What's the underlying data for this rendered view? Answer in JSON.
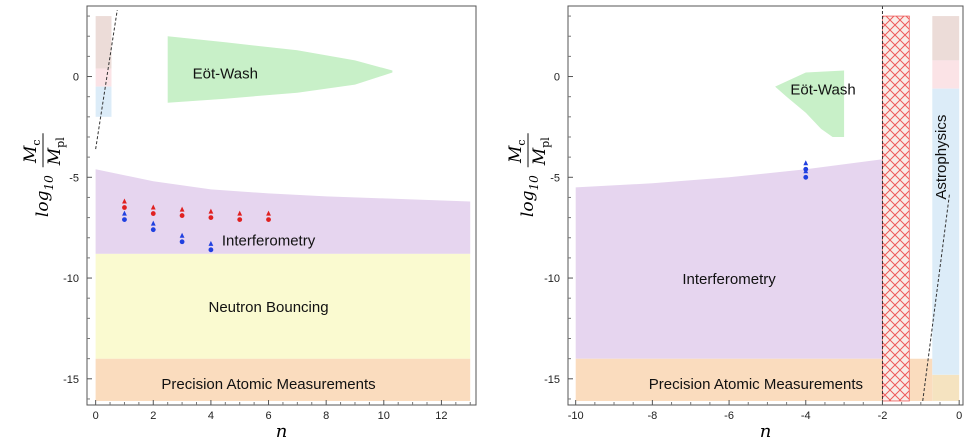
{
  "chart_data": [
    {
      "type": "scatter",
      "xlabel": "n",
      "ylabel": {
        "main": "log",
        "sub": "10",
        "num": "M",
        "num_sub": "c",
        "den": "M",
        "den_sub": "pl"
      },
      "xlim": [
        -0.3,
        13.2
      ],
      "ylim": [
        -16.3,
        3.5
      ],
      "xticks": [
        0,
        2,
        4,
        6,
        8,
        10,
        12
      ],
      "yticks": [
        0,
        -5,
        -10,
        -15
      ],
      "regions": [
        {
          "name": "Eöt-Wash",
          "color": "#c8f0c8",
          "polygon": [
            [
              2.5,
              2.0
            ],
            [
              4.5,
              1.7
            ],
            [
              7.0,
              1.3
            ],
            [
              9.0,
              0.8
            ],
            [
              10.3,
              0.3
            ],
            [
              10.3,
              0.2
            ],
            [
              9.0,
              -0.4
            ],
            [
              7.0,
              -0.8
            ],
            [
              4.5,
              -1.1
            ],
            [
              2.5,
              -1.3
            ]
          ]
        },
        {
          "name": "Interferometry",
          "color": "#e6d5ef",
          "polygon": [
            [
              0,
              -4.6
            ],
            [
              2,
              -5.2
            ],
            [
              4,
              -5.6
            ],
            [
              6,
              -5.8
            ],
            [
              8,
              -5.95
            ],
            [
              10,
              -6.05
            ],
            [
              13,
              -6.2
            ],
            [
              13,
              -8.8
            ],
            [
              0,
              -8.8
            ]
          ]
        },
        {
          "name": "Neutron Bouncing",
          "color": "#fafad0",
          "polygon": [
            [
              0,
              -8.8
            ],
            [
              13,
              -8.8
            ],
            [
              13,
              -14.0
            ],
            [
              0,
              -14.0
            ]
          ]
        },
        {
          "name": "Precision Atomic Measurements",
          "color": "#fadcbe",
          "polygon": [
            [
              0,
              -14.0
            ],
            [
              13,
              -14.0
            ],
            [
              13,
              -16.1
            ],
            [
              0,
              -16.1
            ]
          ]
        }
      ],
      "strips": [
        {
          "color": "#ecdcd8",
          "y": [
            0.4,
            3.0
          ]
        },
        {
          "color": "#fbe3e6",
          "y": [
            -0.5,
            0.4
          ]
        },
        {
          "color": "#dcecf8",
          "y": [
            -2.0,
            -0.5
          ]
        }
      ],
      "boundary_line": [
        [
          0,
          -3.6
        ],
        [
          0.75,
          3.3
        ]
      ],
      "series": [
        {
          "color": "#e02020",
          "points": [
            [
              1,
              -6.5
            ],
            [
              2,
              -6.8
            ],
            [
              3,
              -6.9
            ],
            [
              4,
              -7.0
            ],
            [
              5,
              -7.1
            ],
            [
              6,
              -7.1
            ]
          ]
        },
        {
          "color": "#2040e0",
          "points": [
            [
              1,
              -7.1
            ],
            [
              2,
              -7.6
            ],
            [
              3,
              -8.2
            ],
            [
              4,
              -8.6
            ]
          ]
        }
      ],
      "labels": [
        {
          "text": "Eöt-Wash",
          "x": 4.5,
          "y": 0.1
        },
        {
          "text": "Interferometry",
          "x": 6.0,
          "y": -8.2
        },
        {
          "text": "Neutron Bouncing",
          "x": 6.0,
          "y": -11.5
        },
        {
          "text": "Precision Atomic Measurements",
          "x": 6.0,
          "y": -15.3
        }
      ]
    },
    {
      "type": "scatter",
      "xlabel": "n",
      "ylabel": {
        "main": "log",
        "sub": "10",
        "num": "M",
        "num_sub": "c",
        "den": "M",
        "den_sub": "pl"
      },
      "xlim": [
        -10.2,
        0.1
      ],
      "ylim": [
        -16.3,
        3.5
      ],
      "xticks": [
        -10,
        -8,
        -6,
        -4,
        -2,
        0
      ],
      "yticks": [
        0,
        -5,
        -10,
        -15
      ],
      "regions": [
        {
          "name": "Eöt-Wash",
          "color": "#c8f0c8",
          "polygon": [
            [
              -4.0,
              0.2
            ],
            [
              -3.0,
              0.3
            ],
            [
              -3.0,
              -3.0
            ],
            [
              -3.3,
              -3.0
            ],
            [
              -3.6,
              -2.6
            ],
            [
              -4.0,
              -1.8
            ],
            [
              -4.5,
              -1.0
            ],
            [
              -4.8,
              -0.5
            ]
          ]
        },
        {
          "name": "Interferometry",
          "color": "#e6d5ef",
          "polygon": [
            [
              -10,
              -5.5
            ],
            [
              -8,
              -5.3
            ],
            [
              -6,
              -5.0
            ],
            [
              -4,
              -4.6
            ],
            [
              -2,
              -4.1
            ],
            [
              -2,
              -14.0
            ],
            [
              -10,
              -14.0
            ]
          ]
        },
        {
          "name": "Precision Atomic Measurements",
          "color": "#fadcbe",
          "polygon": [
            [
              -10,
              -14.0
            ],
            [
              -0.7,
              -14.0
            ],
            [
              -0.7,
              -16.1
            ],
            [
              -10,
              -16.1
            ]
          ]
        },
        {
          "name": "Astrophysics",
          "color": "#dcecf8",
          "polygon": [
            [
              -0.7,
              -0.6
            ],
            [
              0,
              -0.6
            ],
            [
              0,
              -14.8
            ],
            [
              -0.7,
              -14.8
            ]
          ]
        },
        {
          "name": "hatched-band",
          "color": "#f8ece8",
          "polygon": [
            [
              -2,
              3.0
            ],
            [
              -1.3,
              3.0
            ],
            [
              -1.3,
              -16.1
            ],
            [
              -2,
              -16.1
            ]
          ]
        }
      ],
      "strips": [
        {
          "color": "#ecdcd8",
          "x": [
            -0.7,
            0
          ],
          "y": [
            0.8,
            3.0
          ]
        },
        {
          "color": "#fbe3e6",
          "x": [
            -0.7,
            0
          ],
          "y": [
            -0.6,
            0.8
          ]
        },
        {
          "color": "#f5e3c0",
          "x": [
            -0.7,
            0
          ],
          "y": [
            -16.1,
            -14.8
          ]
        }
      ],
      "hatch": {
        "x": [
          -2,
          -1.3
        ],
        "y": [
          -16.1,
          3.0
        ],
        "color": "#ee5a5a"
      },
      "vline": -2,
      "boundary_line": [
        [
          -0.95,
          -16.1
        ],
        [
          -0.25,
          -5.8
        ]
      ],
      "series": [
        {
          "color": "#2040e0",
          "points": [
            [
              -4,
              -4.6
            ],
            [
              -4,
              -5.0
            ]
          ]
        }
      ],
      "labels": [
        {
          "text": "Eöt-Wash",
          "x": -3.55,
          "y": -0.7
        },
        {
          "text": "Interferometry",
          "x": -6.0,
          "y": -10.1
        },
        {
          "text": "Precision Atomic Measurements",
          "x": -5.3,
          "y": -15.3
        },
        {
          "text": "Astrophysics",
          "x": -0.45,
          "y": -4.0,
          "rotate": -90
        }
      ]
    }
  ]
}
